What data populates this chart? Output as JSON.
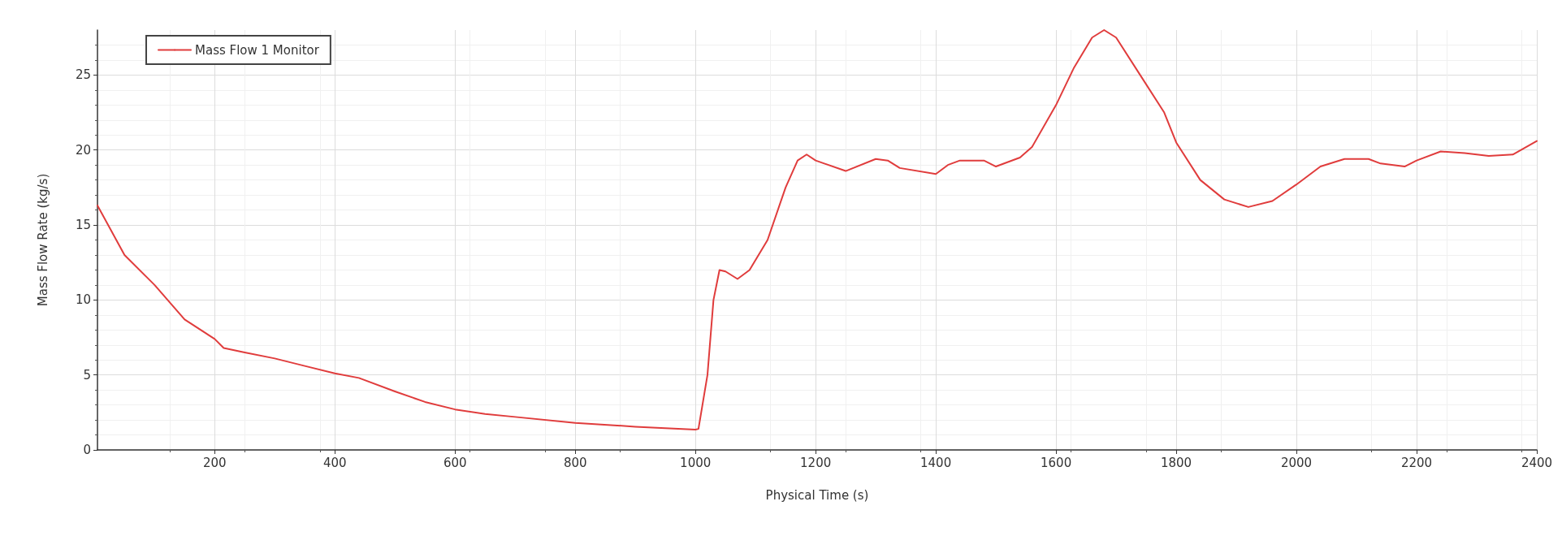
{
  "chart_data": {
    "type": "line",
    "xlabel": "Physical Time (s)",
    "ylabel": "Mass Flow Rate (kg/s)",
    "xlim": [
      5,
      2400
    ],
    "ylim": [
      0,
      28
    ],
    "xticks": [
      200,
      400,
      600,
      800,
      1000,
      1200,
      1400,
      1600,
      1800,
      2000,
      2200,
      2400
    ],
    "yticks": [
      0,
      5,
      10,
      15,
      20,
      25
    ],
    "grid": true,
    "legend": "top left",
    "marker": "none",
    "line_style": "solid",
    "series": [
      {
        "name": "Mass Flow 1 Monitor",
        "color": "#e03c3c",
        "x": [
          5,
          50,
          100,
          150,
          200,
          215,
          250,
          300,
          350,
          400,
          440,
          500,
          550,
          600,
          650,
          700,
          800,
          900,
          1000,
          1005,
          1020,
          1030,
          1040,
          1050,
          1070,
          1090,
          1120,
          1150,
          1170,
          1185,
          1200,
          1250,
          1300,
          1320,
          1340,
          1400,
          1420,
          1440,
          1480,
          1500,
          1540,
          1560,
          1600,
          1630,
          1660,
          1680,
          1700,
          1740,
          1780,
          1800,
          1840,
          1880,
          1920,
          1960,
          2000,
          2040,
          2080,
          2120,
          2140,
          2180,
          2200,
          2240,
          2280,
          2320,
          2360,
          2400
        ],
        "values": [
          16.3,
          13.0,
          11.0,
          8.7,
          7.4,
          6.8,
          6.5,
          6.1,
          5.6,
          5.1,
          4.8,
          3.9,
          3.2,
          2.7,
          2.4,
          2.2,
          1.8,
          1.55,
          1.35,
          1.4,
          5,
          10,
          12.0,
          11.9,
          11.4,
          12,
          14,
          17.5,
          19.3,
          19.7,
          19.3,
          18.6,
          19.4,
          19.3,
          18.8,
          18.4,
          19.0,
          19.3,
          19.3,
          18.9,
          19.5,
          20.2,
          23,
          25.5,
          27.5,
          28.0,
          27.5,
          25.0,
          22.5,
          20.5,
          18.0,
          16.7,
          16.2,
          16.6,
          17.7,
          18.9,
          19.4,
          19.4,
          19.1,
          18.9,
          19.3,
          19.9,
          19.8,
          19.6,
          19.7,
          20.6
        ]
      }
    ]
  }
}
